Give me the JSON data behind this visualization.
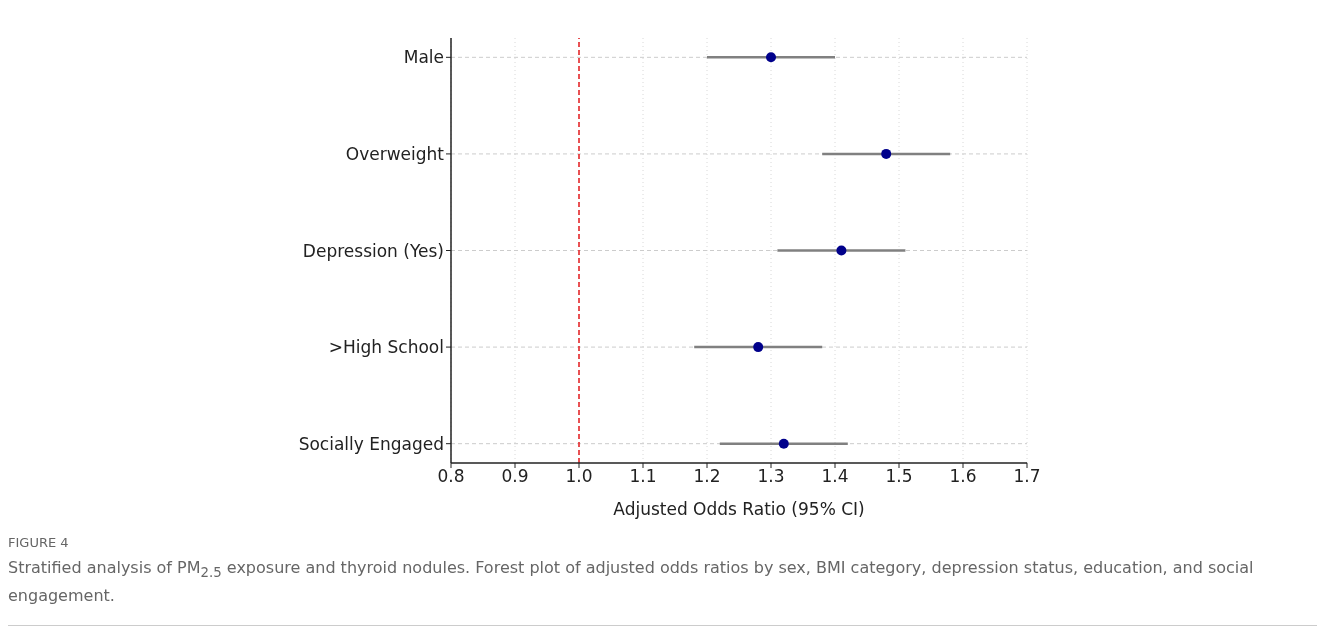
{
  "chart_data": {
    "type": "scatter",
    "orientation": "horizontal",
    "categories": [
      "Male",
      "Overweight",
      "Depression (Yes)",
      ">High School",
      "Socially Engaged"
    ],
    "color": "#00008b",
    "values": [
      1.3,
      1.48,
      1.41,
      1.28,
      1.32
    ],
    "errors": [
      [
        1.2,
        1.4
      ],
      [
        1.38,
        1.58
      ],
      [
        1.31,
        1.51
      ],
      [
        1.18,
        1.38
      ],
      [
        1.22,
        1.42
      ]
    ],
    "xlabel": "Adjusted Odds Ratio (95% CI)",
    "xlim": [
      0.8,
      1.7
    ],
    "xticks": [
      0.8,
      0.9,
      {
        "value": 1.0,
        "label": "1.0"
      },
      1.1,
      1.2,
      1.3,
      1.4,
      1.5,
      1.6,
      1.7
    ],
    "grid": true,
    "marker": "circle",
    "ref_lines": [
      {
        "axis": "x",
        "value": 1.0,
        "color": "#e41a1c",
        "line_style": "dashed"
      }
    ],
    "annotations": [
      "FIGURE 4",
      "Stratified analysis of PM$_{2.5}$ exposure and thyroid nodules. Forest plot of adjusted odds ratios by sex, BMI category, depression status, education, and social engagement."
    ]
  }
}
